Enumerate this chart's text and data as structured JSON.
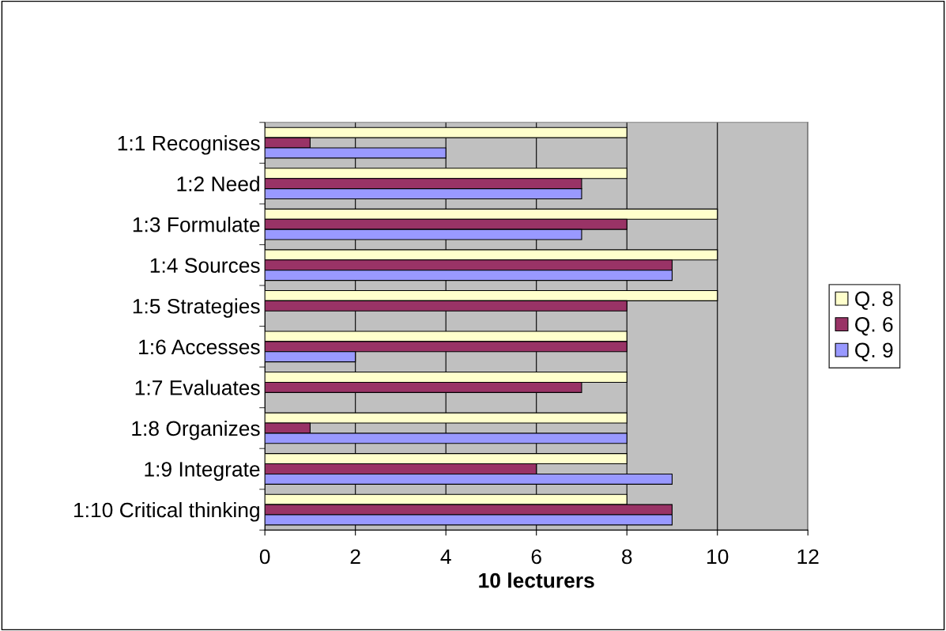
{
  "chart_data": {
    "type": "bar",
    "orientation": "horizontal",
    "xlabel": "10 lecturers",
    "categories": [
      "1:1 Recognises",
      "1:2 Need",
      "1:3 Formulate",
      "1:4 Sources",
      "1:5 Strategies",
      "1:6 Accesses",
      "1:7 Evaluates",
      "1:8 Organizes",
      "1:9 Integrate",
      "1:10 Critical thinking"
    ],
    "series": [
      {
        "name": "Q. 8",
        "color": "#ffffcc",
        "values": [
          8,
          8,
          10,
          10,
          10,
          8,
          8,
          8,
          8,
          8
        ]
      },
      {
        "name": "Q. 6",
        "color": "#993366",
        "values": [
          1,
          7,
          8,
          9,
          8,
          8,
          7,
          1,
          6,
          9
        ]
      },
      {
        "name": "Q. 9",
        "color": "#9999ff",
        "values": [
          4,
          7,
          7,
          9,
          null,
          2,
          null,
          8,
          9,
          9
        ]
      }
    ],
    "xlim": [
      0,
      12
    ],
    "xticks": [
      0,
      2,
      4,
      6,
      8,
      10,
      12
    ],
    "grid": "x",
    "legend": "right"
  }
}
